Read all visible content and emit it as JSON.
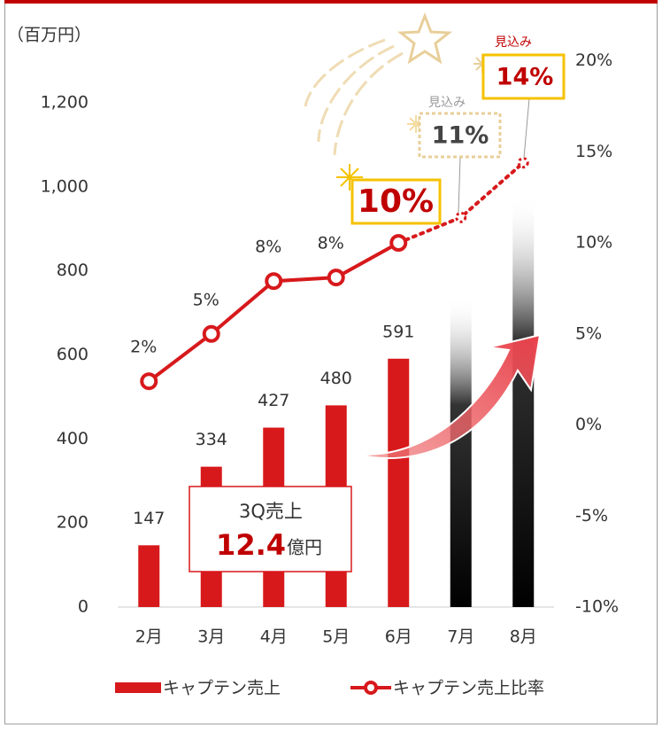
{
  "chart_data": {
    "type": "bar-line",
    "y_label": "（百万円）",
    "categories": [
      "2月",
      "3月",
      "4月",
      "5月",
      "6月",
      "7月",
      "8月"
    ],
    "series": [
      {
        "name": "キャプテン売上",
        "type": "bar",
        "color": "#d7191c",
        "values": [
          147,
          334,
          427,
          480,
          591,
          null,
          null
        ]
      },
      {
        "name": "キャプテン売上比率",
        "type": "line",
        "axis": "y2",
        "color": "#d7191c",
        "values": [
          2.4,
          5,
          7.9,
          8.1,
          10,
          11.4,
          14.4
        ],
        "value_labels": [
          "2%",
          "5%",
          "8%",
          "8%",
          "10%",
          "11%",
          "14%"
        ],
        "dashed_from": 4
      }
    ],
    "forecast_bars": {
      "color": "#f0a0a8",
      "values": [
        null,
        null,
        null,
        null,
        null,
        740,
        980
      ]
    },
    "ylim": [
      0,
      1300
    ],
    "yticks": [
      0,
      200,
      400,
      600,
      800,
      {
        "value": 1000,
        "label": "1,000"
      },
      {
        "value": 1200,
        "label": "1,200"
      }
    ],
    "y2lim": [
      -10,
      20
    ],
    "y2ticks": [
      {
        "value": -10,
        "label": "-10%"
      },
      {
        "value": -5,
        "label": "-5%"
      },
      {
        "value": 0,
        "label": "0%"
      },
      {
        "value": 5,
        "label": "5%"
      },
      {
        "value": 10,
        "label": "10%"
      },
      {
        "value": 15,
        "label": "15%"
      },
      {
        "value": 20,
        "label": "20%"
      }
    ],
    "annotations": {
      "forecast_1": "見込み",
      "forecast_2": "見込み",
      "q3_title": "3Q売上",
      "q3_value": "12.4",
      "q3_unit": "億円"
    }
  }
}
